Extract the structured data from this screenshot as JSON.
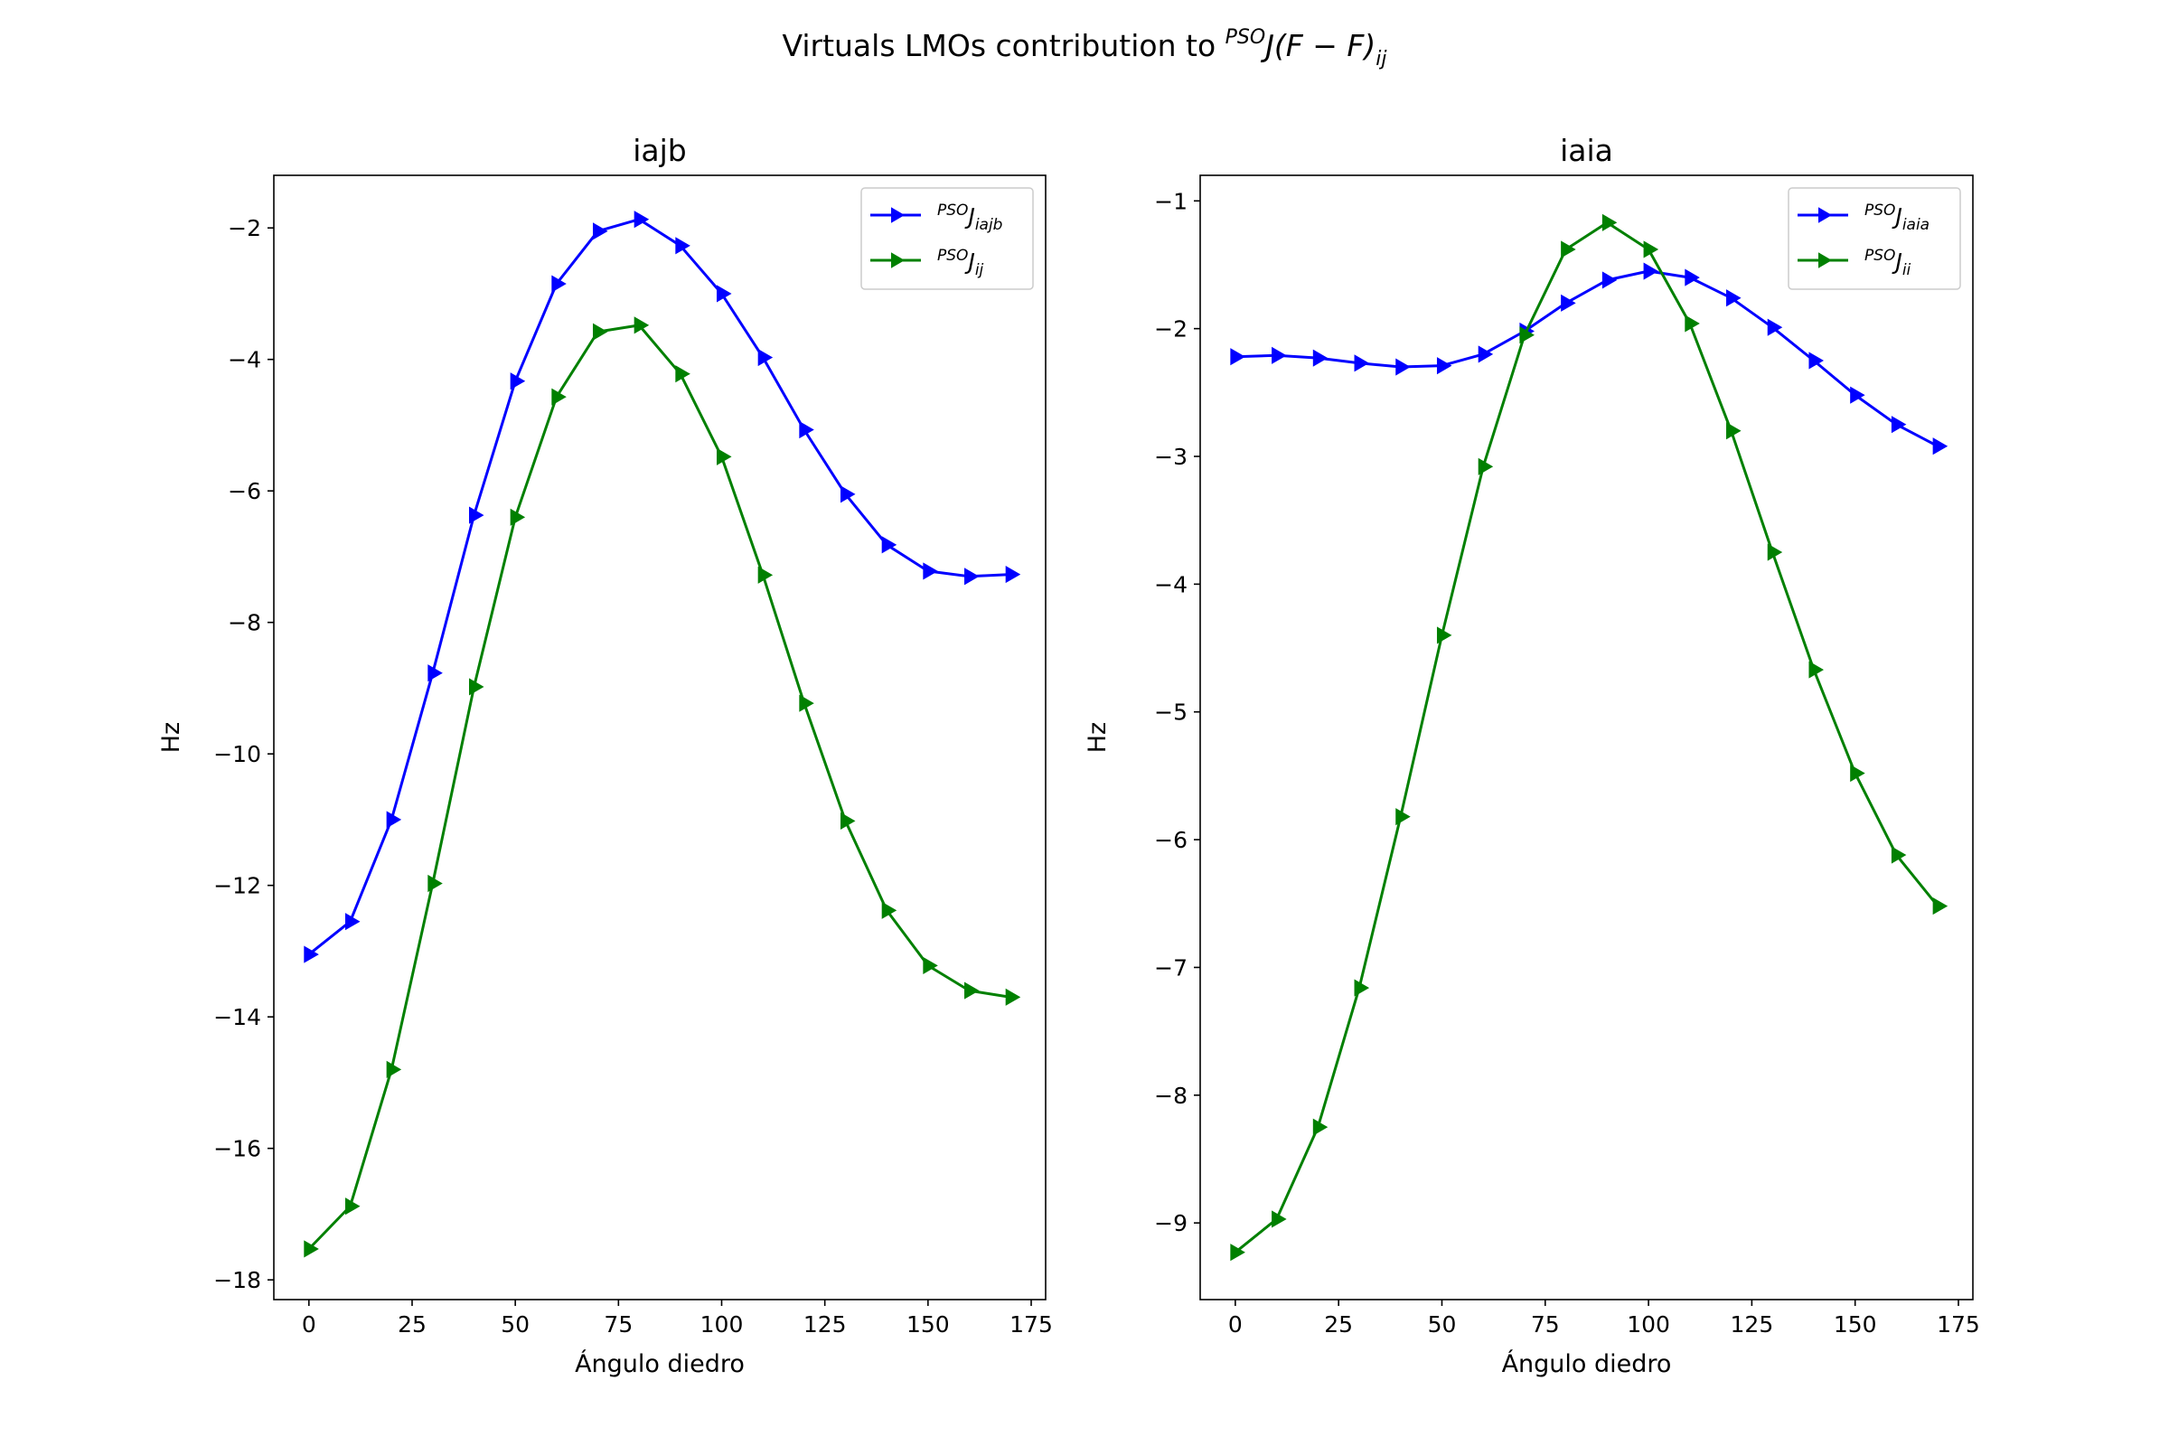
{
  "suptitle": {
    "pre": "Virtuals LMOs contribution to ",
    "sup": "PSO",
    "main": "J(F − F)",
    "sub": "ij"
  },
  "colors": {
    "blue": "#0000ff",
    "green": "#008000"
  },
  "chart_data": [
    {
      "type": "line",
      "title": "iajb",
      "xlabel": "Ángulo diedro",
      "ylabel": "Hz",
      "xlim": [
        -8.5,
        178.5
      ],
      "ylim": [
        -18.3,
        -1.2
      ],
      "xticks": [
        0,
        25,
        50,
        75,
        100,
        125,
        150,
        175
      ],
      "yticks": [
        -18,
        -16,
        -14,
        -12,
        -10,
        -8,
        -6,
        -4,
        -2
      ],
      "xtick_labels": [
        "0",
        "25",
        "50",
        "75",
        "100",
        "125",
        "150",
        "175"
      ],
      "ytick_labels": [
        "−18",
        "−16",
        "−14",
        "−12",
        "−10",
        "−8",
        "−6",
        "−4",
        "−2"
      ],
      "legend_position": "upper right",
      "marker": "triangle-right",
      "x": [
        0,
        10,
        20,
        30,
        40,
        50,
        60,
        70,
        80,
        90,
        100,
        110,
        120,
        130,
        140,
        150,
        160,
        170
      ],
      "series": [
        {
          "name_sup": "PSO",
          "name_base": "J",
          "name_sub": "iajb",
          "color": "#0000ff",
          "values": [
            -13.05,
            -12.55,
            -11.0,
            -8.77,
            -6.37,
            -4.33,
            -2.85,
            -2.05,
            -1.87,
            -2.27,
            -3.0,
            -3.97,
            -5.07,
            -6.05,
            -6.82,
            -7.22,
            -7.3,
            -7.27
          ]
        },
        {
          "name_sup": "PSO",
          "name_base": "J",
          "name_sub": "ij",
          "color": "#008000",
          "values": [
            -17.53,
            -16.88,
            -14.8,
            -11.97,
            -8.98,
            -6.4,
            -4.57,
            -3.58,
            -3.48,
            -4.22,
            -5.48,
            -7.28,
            -9.23,
            -11.02,
            -12.38,
            -13.22,
            -13.6,
            -13.7
          ]
        }
      ]
    },
    {
      "type": "line",
      "title": "iaia",
      "xlabel": "Ángulo diedro",
      "ylabel": "Hz",
      "xlim": [
        -8.5,
        178.5
      ],
      "ylim": [
        -9.6,
        -0.8
      ],
      "xticks": [
        0,
        25,
        50,
        75,
        100,
        125,
        150,
        175
      ],
      "yticks": [
        -9,
        -8,
        -7,
        -6,
        -5,
        -4,
        -3,
        -2,
        -1
      ],
      "xtick_labels": [
        "0",
        "25",
        "50",
        "75",
        "100",
        "125",
        "150",
        "175"
      ],
      "ytick_labels": [
        "−9",
        "−8",
        "−7",
        "−6",
        "−5",
        "−4",
        "−3",
        "−2",
        "−1"
      ],
      "legend_position": "upper right",
      "marker": "triangle-right",
      "x": [
        0,
        10,
        20,
        30,
        40,
        50,
        60,
        70,
        80,
        90,
        100,
        110,
        120,
        130,
        140,
        150,
        160,
        170
      ],
      "series": [
        {
          "name_sup": "PSO",
          "name_base": "J",
          "name_sub": "iaia",
          "color": "#0000ff",
          "values": [
            -2.22,
            -2.21,
            -2.23,
            -2.27,
            -2.3,
            -2.29,
            -2.2,
            -2.02,
            -1.8,
            -1.62,
            -1.55,
            -1.6,
            -1.76,
            -1.99,
            -2.25,
            -2.52,
            -2.75,
            -2.92
          ]
        },
        {
          "name_sup": "PSO",
          "name_base": "J",
          "name_sub": "ii",
          "color": "#008000",
          "values": [
            -9.23,
            -8.97,
            -8.25,
            -7.16,
            -5.82,
            -4.4,
            -3.08,
            -2.05,
            -1.38,
            -1.17,
            -1.38,
            -1.96,
            -2.8,
            -3.75,
            -4.67,
            -5.48,
            -6.12,
            -6.52
          ]
        }
      ]
    }
  ]
}
